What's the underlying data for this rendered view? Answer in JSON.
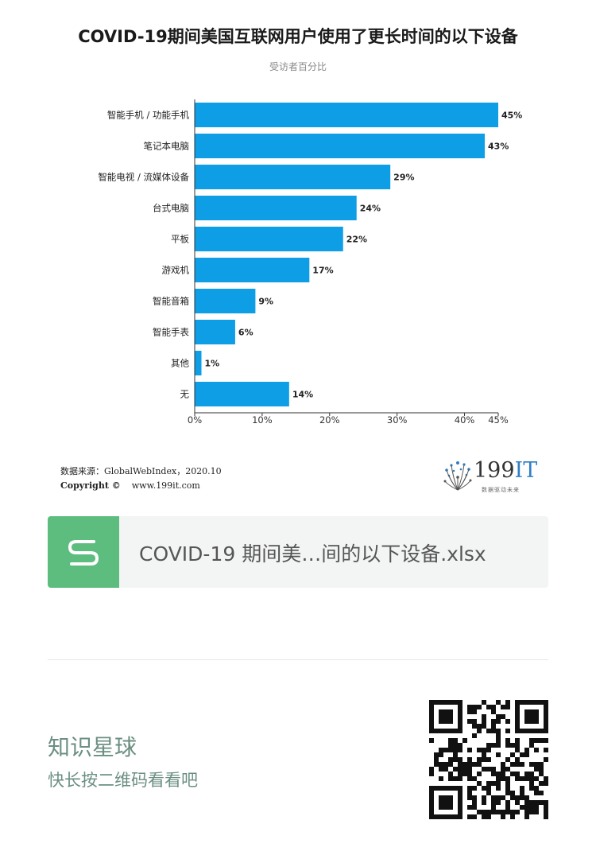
{
  "header": {
    "title": "COVID-19期间美国互联网用户使用了更长时间的以下设备",
    "subtitle": "受访者百分比"
  },
  "chart_data": {
    "type": "bar",
    "orientation": "horizontal",
    "title": "COVID-19期间美国互联网用户使用了更长时间的以下设备",
    "subtitle": "受访者百分比",
    "categories": [
      "智能手机 / 功能手机",
      "笔记本电脑",
      "智能电视 / 流媒体设备",
      "台式电脑",
      "平板",
      "游戏机",
      "智能音箱",
      "智能手表",
      "其他",
      "无"
    ],
    "values": [
      45,
      43,
      29,
      24,
      22,
      17,
      9,
      6,
      1,
      14
    ],
    "value_labels": [
      "45%",
      "43%",
      "29%",
      "24%",
      "22%",
      "17%",
      "9%",
      "6%",
      "1%",
      "14%"
    ],
    "xlim": [
      0,
      45
    ],
    "x_ticks": [
      0,
      10,
      20,
      30,
      40,
      45
    ],
    "x_tick_labels": [
      "0%",
      "10%",
      "20%",
      "30%",
      "40%",
      "45%"
    ],
    "bar_color": "#0e9ee6",
    "grid": false,
    "legend": "none"
  },
  "footer": {
    "source": "数据来源：GlobalWebIndex，2020.10",
    "copyright_label": "Copyright ©",
    "website": "www.199it.com",
    "logo_main": "199",
    "logo_accent": "IT",
    "logo_tagline": "数据驱动未来"
  },
  "attachment": {
    "icon": "spreadsheet-s-icon",
    "file_name": "COVID-19 期间美…间的以下设备.xlsx",
    "icon_color": "#5dbd7f"
  },
  "promo": {
    "title": "知识星球",
    "subtitle": "快长按二维码看看吧",
    "qr_icon": "qr-code-icon"
  },
  "colors": {
    "accent": "#0e9ee6",
    "promo_text": "#6b8f80"
  }
}
